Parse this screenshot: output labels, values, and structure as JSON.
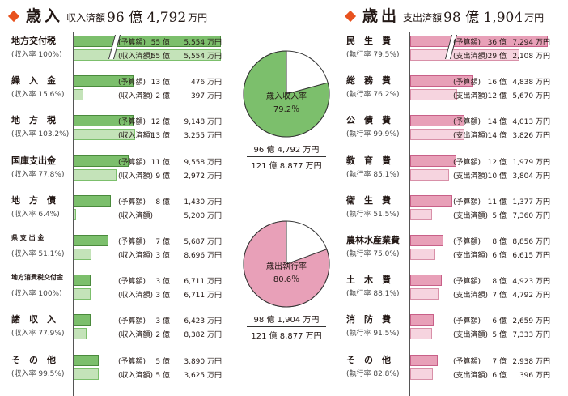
{
  "chart_data": [
    {
      "type": "bar",
      "title": "歳入",
      "summary_label": "収入済額",
      "summary_value": "96 億 4,792",
      "summary_unit": "万円",
      "rate_label": "収入率",
      "unit": "万円",
      "series": [
        {
          "name": "予算額"
        },
        {
          "name": "収入済額"
        }
      ],
      "items": [
        {
          "name": "地方交付税",
          "rate": "(収入率 100%)",
          "budget_label": "(予算額)",
          "budget_oku": "55 億",
          "budget_man": "5,554 万円",
          "actual_label": "(収入済額)",
          "actual_oku": "55 億",
          "actual_man": "5,554 万円",
          "budget": 555554,
          "actual": 555554,
          "broken": true
        },
        {
          "name": "繰　入　金",
          "rate": "(収入率 15.6%)",
          "budget_label": "(予算額)",
          "budget_oku": "13 億",
          "budget_man": "476 万円",
          "actual_label": "(収入済額)",
          "actual_oku": "2 億",
          "actual_man": "397 万円",
          "budget": 130476,
          "actual": 20397,
          "broken": false
        },
        {
          "name": "地　方　税",
          "rate": "(収入率 103.2%)",
          "budget_label": "(予算額)",
          "budget_oku": "12 億",
          "budget_man": "9,148 万円",
          "actual_label": "(収入済額)",
          "actual_oku": "13 億",
          "actual_man": "3,255 万円",
          "budget": 129148,
          "actual": 133255,
          "broken": false
        },
        {
          "name": "国庫支出金",
          "rate": "(収入率 77.8%)",
          "budget_label": "(予算額)",
          "budget_oku": "11 億",
          "budget_man": "9,558 万円",
          "actual_label": "(収入済額)",
          "actual_oku": "9 億",
          "actual_man": "2,972 万円",
          "budget": 119558,
          "actual": 92972,
          "broken": false
        },
        {
          "name": "地　方　債",
          "rate": "(収入率 6.4%)",
          "budget_label": "(予算額)",
          "budget_oku": "8 億",
          "budget_man": "1,430 万円",
          "actual_label": "(収入済額)",
          "actual_oku": "",
          "actual_man": "5,200 万円",
          "budget": 81430,
          "actual": 5200,
          "broken": false
        },
        {
          "name": "県 支 出 金",
          "rate": "(収入率 51.1%)",
          "budget_label": "(予算額)",
          "budget_oku": "7 億",
          "budget_man": "5,687 万円",
          "actual_label": "(収入済額)",
          "actual_oku": "3 億",
          "actual_man": "8,696 万円",
          "budget": 75687,
          "actual": 38696,
          "broken": false
        },
        {
          "name": "地方消費税交付金",
          "rate": "(収入率 100%)",
          "budget_label": "(予算額)",
          "budget_oku": "3 億",
          "budget_man": "6,711 万円",
          "actual_label": "(収入済額)",
          "actual_oku": "3 億",
          "actual_man": "6,711 万円",
          "budget": 36711,
          "actual": 36711,
          "broken": false
        },
        {
          "name": "諸　収　入",
          "rate": "(収入率 77.9%)",
          "budget_label": "(予算額)",
          "budget_oku": "3 億",
          "budget_man": "6,423 万円",
          "actual_label": "(収入済額)",
          "actual_oku": "2 億",
          "actual_man": "8,382 万円",
          "budget": 36423,
          "actual": 28382,
          "broken": false
        },
        {
          "name": "そ　の　他",
          "rate": "(収入率 99.5%)",
          "budget_label": "(予算額)",
          "budget_oku": "5 億",
          "budget_man": "3,890 万円",
          "actual_label": "(収入済額)",
          "actual_oku": "5 億",
          "actual_man": "3,625 万円",
          "budget": 53890,
          "actual": 53625,
          "broken": false
        }
      ],
      "pie": {
        "label": "歳入収入率",
        "percent_text": "79.2％",
        "percent": 79.2,
        "color": "#7cbf6c"
      },
      "totals": {
        "numerator": "96 億 4,792 万円",
        "denominator": "121 億 8,877 万円"
      }
    },
    {
      "type": "bar",
      "title": "歳出",
      "summary_label": "支出済額",
      "summary_value": "98 億 1,904",
      "summary_unit": "万円",
      "rate_label": "執行率",
      "unit": "万円",
      "series": [
        {
          "name": "予算額"
        },
        {
          "name": "支出済額"
        }
      ],
      "items": [
        {
          "name": "民　生　費",
          "rate": "(執行率 79.5%)",
          "budget_label": "(予算額)",
          "budget_oku": "36 億",
          "budget_man": "7,294 万円",
          "actual_label": "(支出済額)",
          "actual_oku": "29 億",
          "actual_man": "2,108 万円",
          "budget": 367294,
          "actual": 292108,
          "broken": true
        },
        {
          "name": "総　務　費",
          "rate": "(執行率 76.2%)",
          "budget_label": "(予算額)",
          "budget_oku": "16 億",
          "budget_man": "4,838 万円",
          "actual_label": "(支出済額)",
          "actual_oku": "12 億",
          "actual_man": "5,670 万円",
          "budget": 164838,
          "actual": 125670,
          "broken": false
        },
        {
          "name": "公　債　費",
          "rate": "(執行率 99.9%)",
          "budget_label": "(予算額)",
          "budget_oku": "14 億",
          "budget_man": "4,013 万円",
          "actual_label": "(支出済額)",
          "actual_oku": "14 億",
          "actual_man": "3,826 万円",
          "budget": 144013,
          "actual": 143826,
          "broken": false
        },
        {
          "name": "教　育　費",
          "rate": "(執行率 85.1%)",
          "budget_label": "(予算額)",
          "budget_oku": "12 億",
          "budget_man": "1,979 万円",
          "actual_label": "(支出済額)",
          "actual_oku": "10 億",
          "actual_man": "3,804 万円",
          "budget": 121979,
          "actual": 103804,
          "broken": false
        },
        {
          "name": "衛　生　費",
          "rate": "(執行率 51.5%)",
          "budget_label": "(予算額)",
          "budget_oku": "11 億",
          "budget_man": "1,377 万円",
          "actual_label": "(支出済額)",
          "actual_oku": "5 億",
          "actual_man": "7,360 万円",
          "budget": 111377,
          "actual": 57360,
          "broken": false
        },
        {
          "name": "農林水産業費",
          "rate": "(執行率 75.0%)",
          "budget_label": "(予算額)",
          "budget_oku": "8 億",
          "budget_man": "8,856 万円",
          "actual_label": "(支出済額)",
          "actual_oku": "6 億",
          "actual_man": "6,615 万円",
          "budget": 88856,
          "actual": 66615,
          "broken": false
        },
        {
          "name": "土　木　費",
          "rate": "(執行率 88.1%)",
          "budget_label": "(予算額)",
          "budget_oku": "8 億",
          "budget_man": "4,923 万円",
          "actual_label": "(支出済額)",
          "actual_oku": "7 億",
          "actual_man": "4,792 万円",
          "budget": 84923,
          "actual": 74792,
          "broken": false
        },
        {
          "name": "消　防　費",
          "rate": "(執行率 91.5%)",
          "budget_label": "(予算額)",
          "budget_oku": "6 億",
          "budget_man": "2,659 万円",
          "actual_label": "(支出済額)",
          "actual_oku": "5 億",
          "actual_man": "7,333 万円",
          "budget": 62659,
          "actual": 57333,
          "broken": false
        },
        {
          "name": "そ　の　他",
          "rate": "(執行率 82.8%)",
          "budget_label": "(予算額)",
          "budget_oku": "7 億",
          "budget_man": "2,938 万円",
          "actual_label": "(支出済額)",
          "actual_oku": "6 億",
          "actual_man": "396 万円",
          "budget": 72938,
          "actual": 60396,
          "broken": false
        }
      ],
      "pie": {
        "label": "歳出執行率",
        "percent_text": "80.6％",
        "percent": 80.6,
        "color": "#e8a0b8"
      },
      "totals": {
        "numerator": "98 億 1,904 万円",
        "denominator": "121 億 8,877 万円"
      }
    }
  ]
}
